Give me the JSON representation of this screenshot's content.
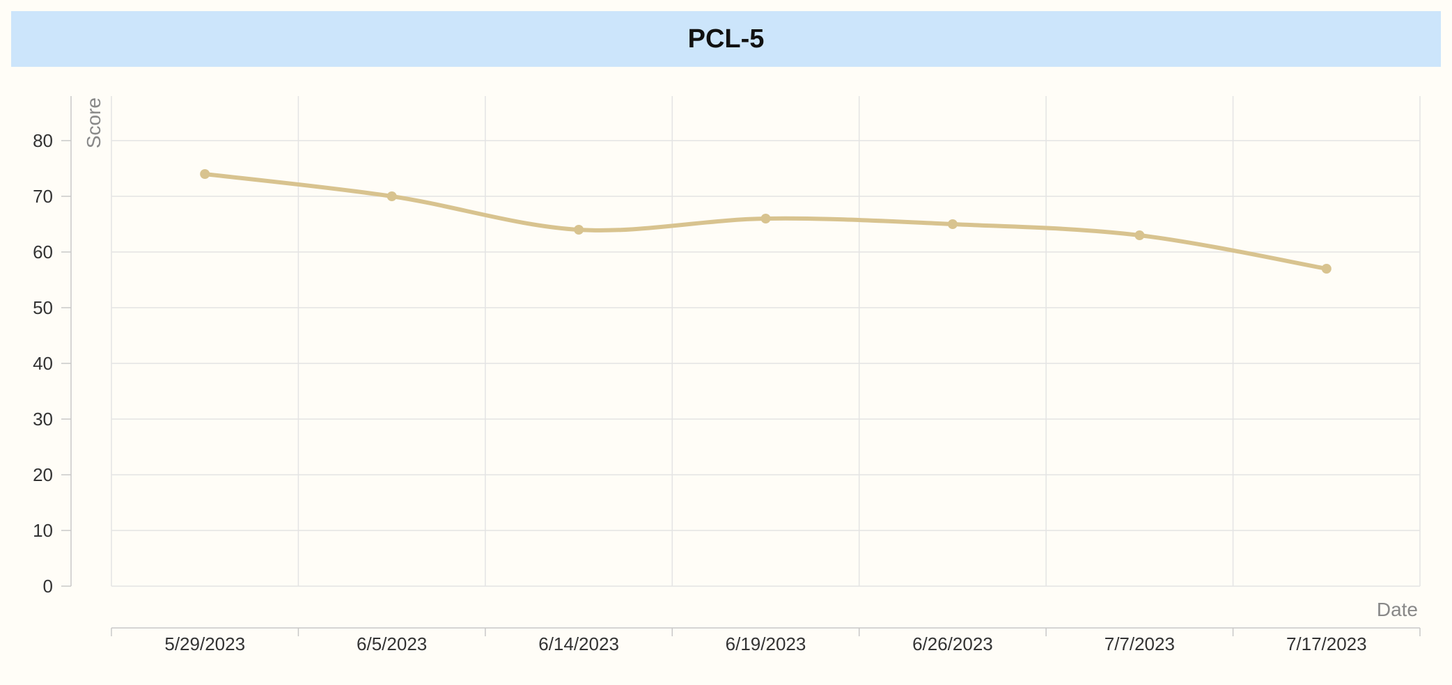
{
  "chart_data": {
    "type": "line",
    "title": "PCL-5",
    "xlabel": "Date",
    "ylabel": "Score",
    "categories": [
      "5/29/2023",
      "6/5/2023",
      "6/14/2023",
      "6/19/2023",
      "6/26/2023",
      "7/7/2023",
      "7/17/2023"
    ],
    "series": [
      {
        "values": [
          74,
          70,
          64,
          66,
          65,
          63,
          57
        ]
      }
    ],
    "ylim": [
      0,
      88
    ],
    "yticks": [
      "0",
      "10",
      "20",
      "30",
      "40",
      "50",
      "60",
      "70",
      "80"
    ],
    "grid": true,
    "legend": "none",
    "colors": {
      "line": "#d8c38f",
      "grid": "#e4e4e4",
      "title_background": "#cce5fb"
    }
  }
}
